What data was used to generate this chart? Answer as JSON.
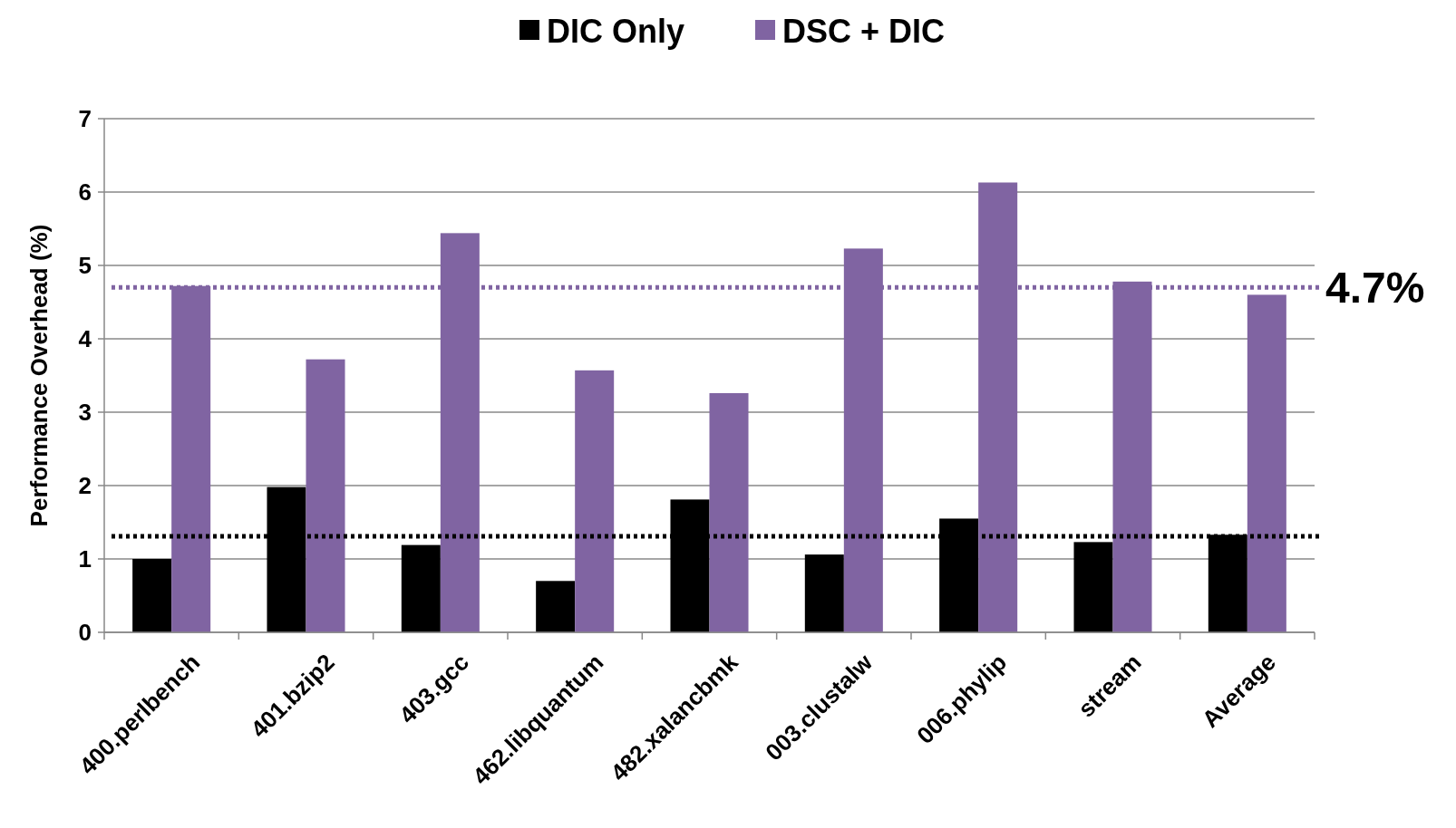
{
  "chart_data": {
    "type": "bar",
    "ylabel": "Performance Overhead (%)",
    "categories": [
      "400.perlbench",
      "401.bzip2",
      "403.gcc",
      "462.libquantum",
      "482.xalancbmk",
      "003.clustalw",
      "006.phylip",
      "stream",
      "Average"
    ],
    "series": [
      {
        "name": "DIC Only",
        "color": "#000000",
        "values": [
          1.0,
          1.98,
          1.19,
          0.7,
          1.81,
          1.06,
          1.55,
          1.23,
          1.33
        ]
      },
      {
        "name": "DSC + DIC",
        "color": "#8064a2",
        "values": [
          4.72,
          3.72,
          5.44,
          3.57,
          3.26,
          5.23,
          6.13,
          4.78,
          4.6
        ]
      }
    ],
    "ylim": [
      0,
      7
    ],
    "yticks": [
      0,
      1,
      2,
      3,
      4,
      5,
      6,
      7
    ],
    "grid": "y",
    "legend": "top",
    "ref_lines": [
      {
        "axis": "y",
        "value": 4.7,
        "label": "4.7%",
        "color": "#8064a2",
        "line_style": "dotted"
      },
      {
        "axis": "y",
        "value": 1.31,
        "color": "#000000",
        "line_style": "dotted"
      }
    ]
  }
}
